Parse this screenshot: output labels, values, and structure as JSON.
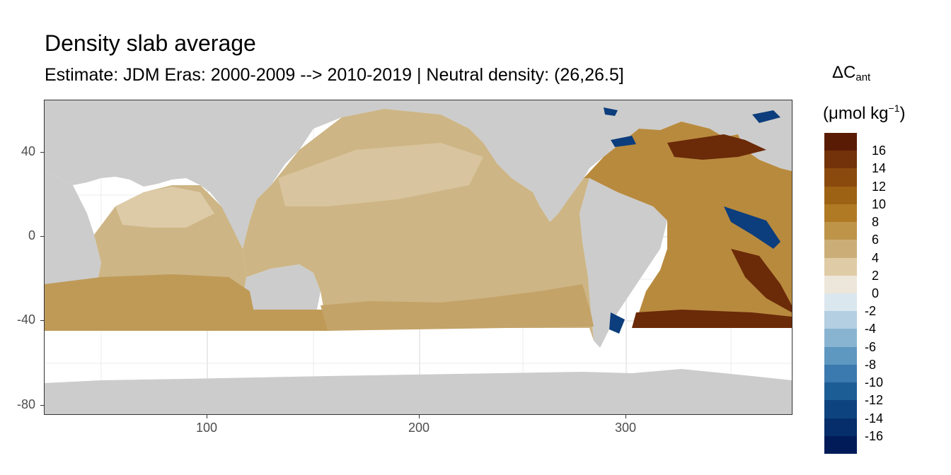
{
  "title": "Density slab average",
  "subtitle": "Estimate: JDM Eras: 2000-2009 --> 2010-2019 | Neutral density: (26,26.5]",
  "legend": {
    "title_symbol": "ΔC",
    "title_subscript": "ant",
    "units_prefix": "(μmol kg",
    "units_superscript": "−1",
    "units_suffix": ")",
    "labels": [
      "16",
      "14",
      "12",
      "10",
      "8",
      "6",
      "4",
      "2",
      "0",
      "-2",
      "-4",
      "-6",
      "-8",
      "-10",
      "-12",
      "-14",
      "-16"
    ],
    "colors": [
      "#5a1b05",
      "#73320a",
      "#8a4a0e",
      "#9e6214",
      "#b07a25",
      "#bd9448",
      "#cbae77",
      "#dfcca6",
      "#ede6da",
      "#dbe7ee",
      "#b3cfe1",
      "#88b4d1",
      "#5e97c0",
      "#3a7aae",
      "#1d5d96",
      "#0d4480",
      "#052e6a",
      "#001b58"
    ]
  },
  "axes": {
    "x_ticks": [
      "100",
      "200",
      "300"
    ],
    "y_ticks": [
      "40",
      "0",
      "-40",
      "-80"
    ]
  },
  "map_colors": {
    "land": "#cccccc",
    "grid": "#ebebeb",
    "pacific": "#cdb585",
    "pacific_light": "#ddcba8",
    "southern_band": "#bf9a57",
    "atlantic_mid": "#b88a3e",
    "atlantic_dark": "#6b2a08",
    "negative": "#0c3d7c"
  }
}
